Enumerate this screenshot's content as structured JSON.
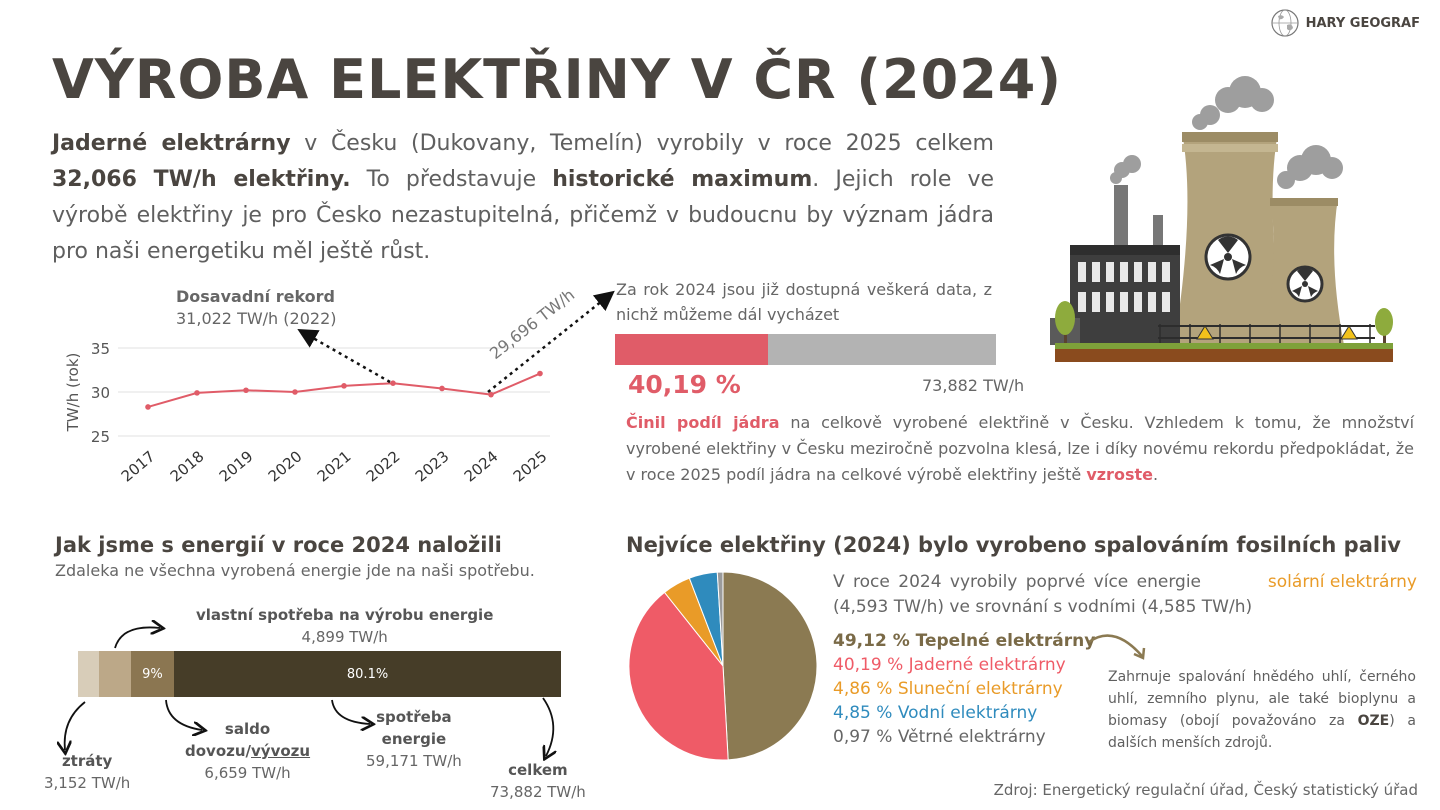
{
  "brand": {
    "name": "HARY GEOGRAF",
    "icon": "globe-icon"
  },
  "title": "VÝROBA ELEKTŘINY V ČR (2024)",
  "intro": {
    "s1_bold": "Jaderné elektrárny",
    "s1": " v Česku (Dukovany, Temelín) vyrobily v roce 2025 celkem ",
    "s2_bold": "32,066 TW/h elektřiny.",
    "s3": " To představuje ",
    "s4_bold": "historické maximum",
    "s5": ". Jejich role ve výrobě elektřiny je pro Česko nezastupitelná, přičemž v budoucnu by význam jádra pro naši energetiku měl ještě růst."
  },
  "line_chart_notes": {
    "record_title": "Dosavadní rekord",
    "record_value": "31,022 TW/h (2022)",
    "arrow_value": "29,696 TW/h"
  },
  "share": {
    "note": "Za rok 2024 jsou již dostupná veškerá data, z nichž můžeme dál vycházet",
    "percent_label": "40,19 %",
    "total_label": "73,882 TW/h",
    "fraction": 0.4019,
    "color_fill": "#e05c68",
    "color_rest": "#b3b3b3"
  },
  "para2": {
    "lead": "Činil podíl jádra",
    "body": " na celkově vyrobené elektřině v Česku. Vzhledem k tomu, že množství vyrobené elektřiny v Česku meziročně pozvolna klesá, lze i díky novému rekordu předpokládat, že v roce 2025 podíl jádra na celkové výrobě elektřiny ještě ",
    "accent": "vzroste",
    "end": "."
  },
  "energy": {
    "heading": "Jak jsme s energií v roce 2024 naložili",
    "sub": "Zdaleka ne všechna vyrobená energie jde na naši spotřebu.",
    "segments": [
      {
        "name": "ztráty",
        "value_label": "3,152 TW/h",
        "value": 3.152,
        "color": "#d8cdb9",
        "pct_label": ""
      },
      {
        "name": "vlastní spotřeba na výrobu energie",
        "value_label": "4,899 TW/h",
        "value": 4.899,
        "color": "#bca888",
        "pct_label": ""
      },
      {
        "name": "saldo dovozu/vývozu",
        "value_label": "6,659 TW/h",
        "value": 6.659,
        "color": "#8b7651",
        "pct_label": "9%"
      },
      {
        "name": "spotřeba energie",
        "value_label": "59,171 TW/h",
        "value": 59.171,
        "color": "#463d28",
        "pct_label": "80.1%"
      }
    ],
    "label_ztraty": "ztráty",
    "label_vlastni": "vlastní spotřeba na výrobu energie",
    "label_saldo_1": "saldo",
    "label_saldo_2a": "dovozu/",
    "label_saldo_2b": "vývozu",
    "label_spotreba_1": "spotřeba",
    "label_spotreba_2": "energie",
    "label_celkem": "celkem",
    "value_celkem": "73,882 TW/h"
  },
  "pie_section": {
    "heading": "Nejvíce elektřiny (2024) bylo vyrobeno spalováním fosilních paliv",
    "text1": "V roce 2024 vyrobily poprvé více energie ",
    "text1_accent": "solární elektrárny",
    "text2": "(4,593 TW/h) ve srovnání s vodními (4,585 TW/h)",
    "legend": [
      "49,12 % Tepelné elektrárny",
      "40,19 % Jaderné elektrárny",
      "4,86 % Sluneční elektrárny",
      "4,85 % Vodní elektrárny",
      "0,97 % Větrné elektrárny"
    ],
    "note_a": "Zahrnuje spalování hnědého uhlí, černého uhlí, zemního plynu, ale také bioplynu a biomasy (obojí považováno za ",
    "note_b": "OZE",
    "note_c": ") a dalších menších zdrojů."
  },
  "source": "Zdroj: Energetický regulační úřad, Český statistický úřad",
  "chart_data": [
    {
      "type": "line",
      "x": [
        "2017",
        "2018",
        "2019",
        "2020",
        "2021",
        "2022",
        "2023",
        "2024",
        "2025"
      ],
      "series": [
        {
          "values": [
            28.3,
            29.9,
            30.2,
            30.0,
            30.7,
            31.0,
            30.4,
            29.7,
            32.1
          ],
          "color": "#e05c68"
        }
      ],
      "ylabel": "TW/h (rok)",
      "yticks": [
        "25",
        "30",
        "35"
      ],
      "ylim": [
        25,
        35
      ],
      "grid": true
    },
    {
      "type": "pie",
      "categories": [
        "Tepelné elektrárny",
        "Jaderné elektrárny",
        "Sluneční elektrárny",
        "Vodní elektrárny",
        "Větrné elektrárny"
      ],
      "values": [
        49.12,
        40.19,
        4.86,
        4.85,
        0.97
      ],
      "colors": [
        "#8b7a52",
        "#ef5b67",
        "#e99b28",
        "#2f8bbd",
        "#9b9b9b"
      ]
    }
  ]
}
